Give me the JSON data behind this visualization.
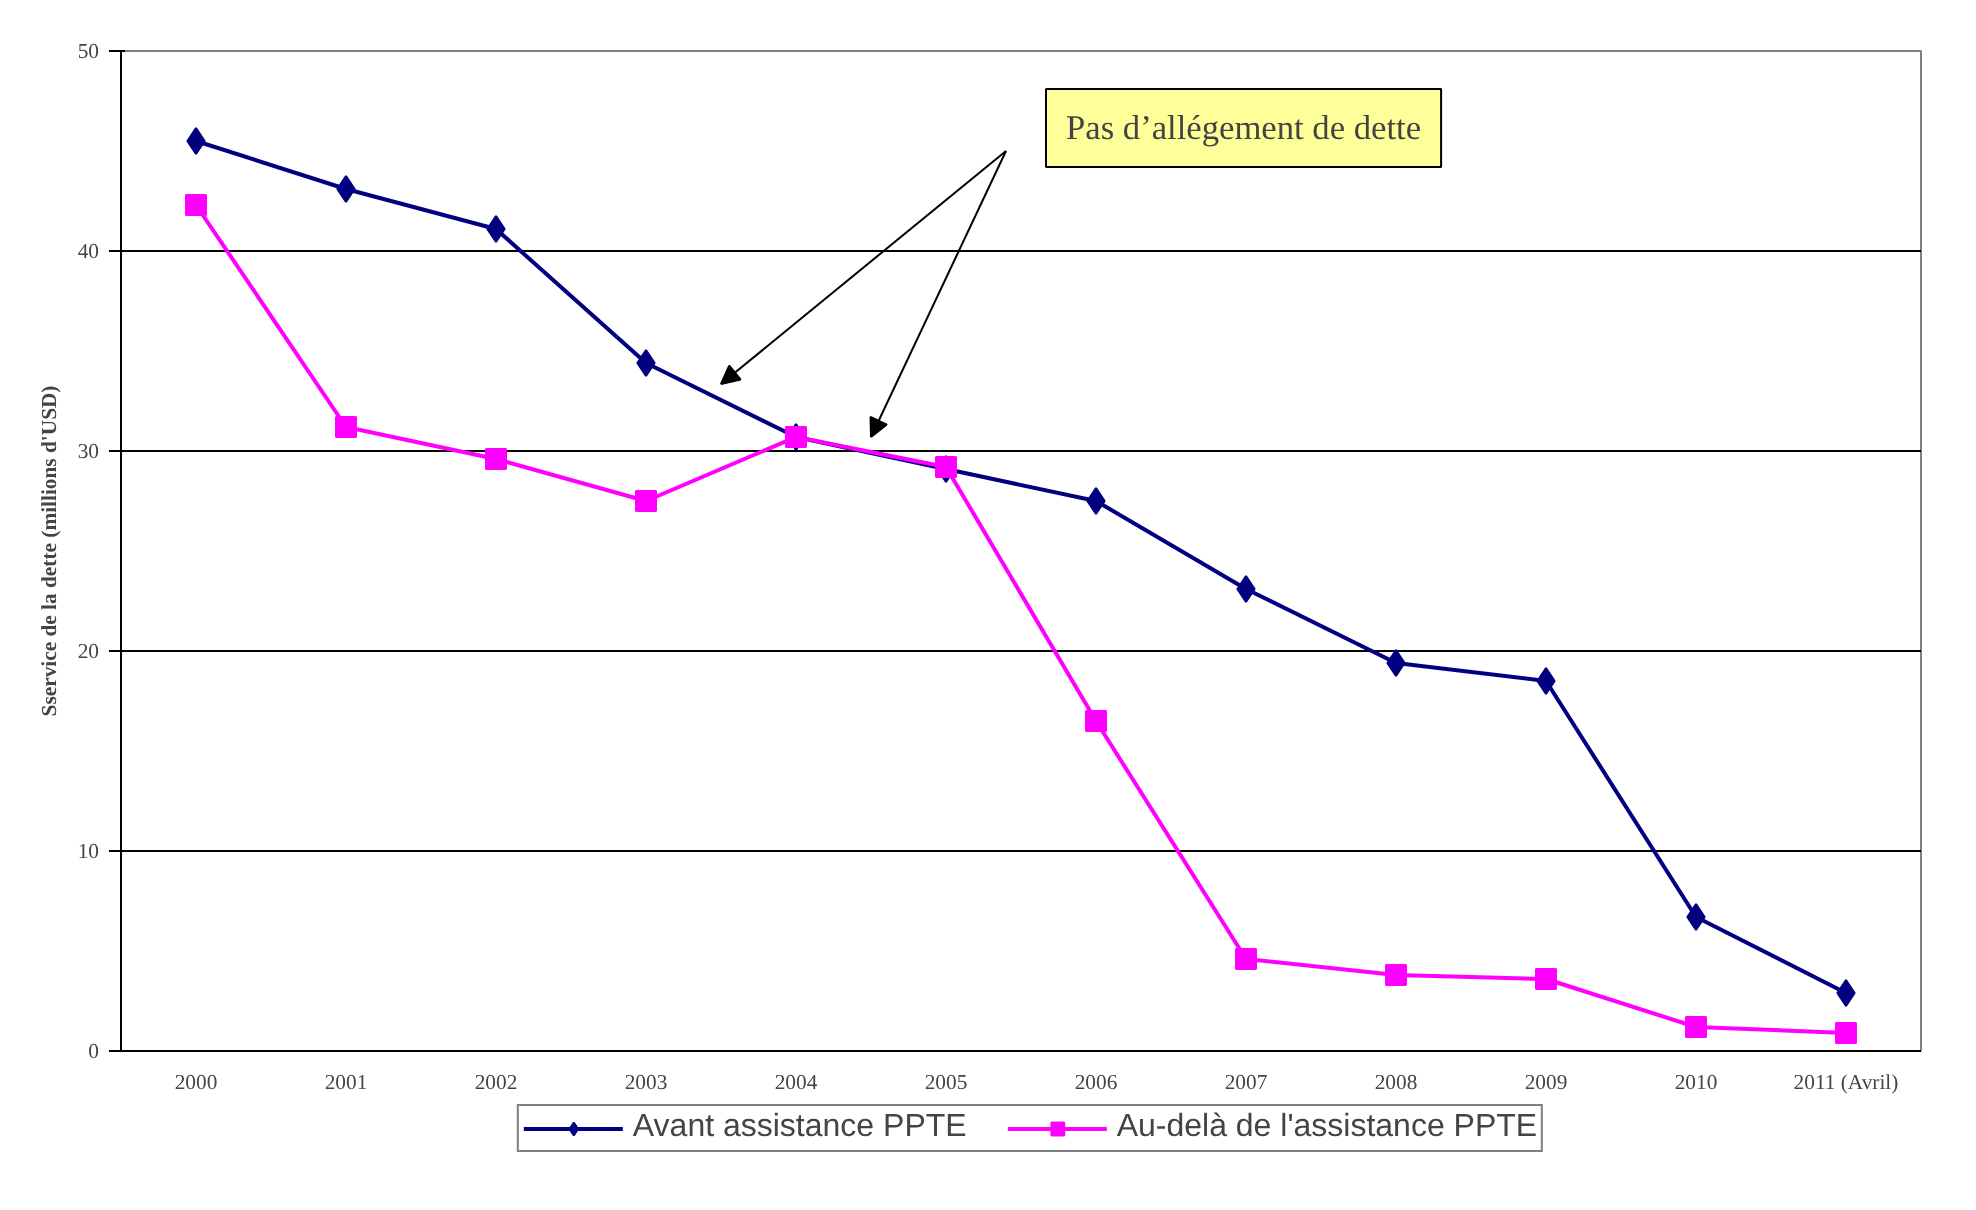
{
  "chart_data": {
    "type": "line",
    "ylabel": "Sservice de la dette (millions d'USD)",
    "categories": [
      "2000",
      "2001",
      "2002",
      "2003",
      "2004",
      "2005",
      "2006",
      "2007",
      "2008",
      "2009",
      "2010",
      "2011 (Avril)"
    ],
    "series": [
      {
        "name": "Avant assistance PPTE",
        "color": "#000080",
        "marker": "diamond",
        "values": [
          45.5,
          43.1,
          41.1,
          34.4,
          30.7,
          29.1,
          27.5,
          23.1,
          19.4,
          18.5,
          6.7,
          2.9
        ]
      },
      {
        "name": "Au-delà de l'assistance PPTE",
        "color": "#ff00ff",
        "marker": "square",
        "values": [
          42.3,
          31.2,
          29.6,
          27.5,
          30.7,
          29.2,
          16.5,
          4.6,
          3.8,
          3.6,
          1.2,
          0.9
        ]
      }
    ],
    "ylim": [
      0,
      50
    ],
    "yticks": [
      0,
      10,
      20,
      30,
      40,
      50
    ],
    "grid": "y",
    "legend": "bottom",
    "line_style": "solid",
    "annotations": [
      "Pas d’allégement de dette"
    ]
  }
}
